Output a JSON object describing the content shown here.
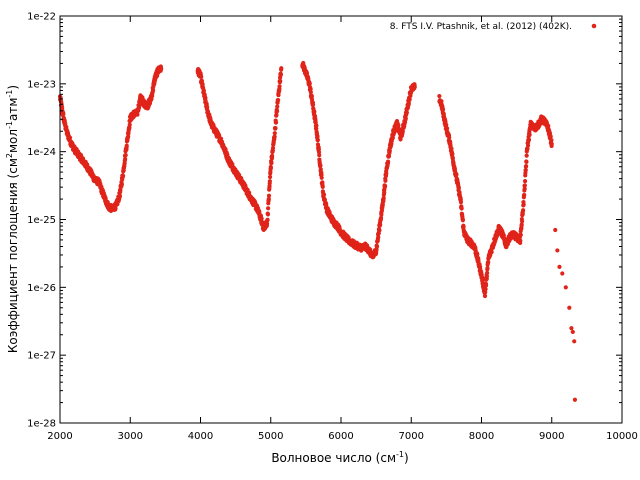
{
  "chart_data": {
    "type": "scatter",
    "title": "",
    "xlabel": {
      "main": "Волновое число (см",
      "sup": "-1",
      "tail": ")"
    },
    "ylabel": {
      "p1": "Коэффициент поглощения (см",
      "s1": "2",
      "p2": "мол",
      "s2": "-1",
      "p3": "атм",
      "s3": "-1",
      "p4": ")"
    },
    "xlim": [
      2000,
      10000
    ],
    "ylim": [
      1e-28,
      1e-22
    ],
    "y_scale": "log",
    "grid": false,
    "legend_position": "top-right",
    "x_ticks": [
      {
        "value": 2000,
        "label": "2000"
      },
      {
        "value": 3000,
        "label": "3000"
      },
      {
        "value": 4000,
        "label": "4000"
      },
      {
        "value": 5000,
        "label": "5000"
      },
      {
        "value": 6000,
        "label": "6000"
      },
      {
        "value": 7000,
        "label": "7000"
      },
      {
        "value": 8000,
        "label": "8000"
      },
      {
        "value": 9000,
        "label": "9000"
      },
      {
        "value": 10000,
        "label": "10000"
      }
    ],
    "y_ticks": [
      {
        "value": 1e-28,
        "label": "1e-28"
      },
      {
        "value": 1e-27,
        "label": "1e-27"
      },
      {
        "value": 1e-26,
        "label": "1e-26"
      },
      {
        "value": 1e-25,
        "label": "1e-25"
      },
      {
        "value": 1e-24,
        "label": "1e-24"
      },
      {
        "value": 1e-23,
        "label": "1e-23"
      },
      {
        "value": 1e-22,
        "label": "1e-22"
      }
    ],
    "series": [
      {
        "name": "8. FTS I.V. Ptashnik, et al. (2012) (402K).",
        "color": "#e0241a",
        "segments": [
          [
            [
              2000,
              6.3e-24
            ],
            [
              2030,
              4.2e-24
            ],
            [
              2060,
              2.8e-24
            ],
            [
              2100,
              1.9e-24
            ],
            [
              2150,
              1.4e-24
            ],
            [
              2200,
              1.1e-24
            ],
            [
              2300,
              8e-25
            ],
            [
              2400,
              5.7e-25
            ],
            [
              2500,
              3.8e-25
            ],
            [
              2550,
              3.6e-25
            ],
            [
              2600,
              2.6e-25
            ],
            [
              2650,
              1.9e-25
            ],
            [
              2700,
              1.5e-25
            ],
            [
              2750,
              1.45e-25
            ],
            [
              2800,
              1.6e-25
            ],
            [
              2850,
              2.3e-25
            ],
            [
              2900,
              5e-25
            ],
            [
              2950,
              1.3e-24
            ],
            [
              3000,
              3.1e-24
            ],
            [
              3050,
              3.6e-24
            ],
            [
              3100,
              3.7e-24
            ],
            [
              3150,
              6.5e-24
            ],
            [
              3200,
              5e-24
            ],
            [
              3250,
              4.8e-24
            ],
            [
              3300,
              6.2e-24
            ],
            [
              3350,
              1.2e-23
            ],
            [
              3400,
              1.6e-23
            ],
            [
              3440,
              1.65e-23
            ]
          ],
          [
            [
              3960,
              1.6e-23
            ],
            [
              4000,
              1.3e-23
            ],
            [
              4050,
              7e-24
            ],
            [
              4100,
              4e-24
            ],
            [
              4150,
              2.6e-24
            ],
            [
              4200,
              2.1e-24
            ],
            [
              4300,
              1.4e-24
            ],
            [
              4400,
              7.5e-25
            ],
            [
              4500,
              5e-25
            ],
            [
              4600,
              3.4e-25
            ],
            [
              4700,
              2.2e-25
            ],
            [
              4800,
              1.5e-25
            ],
            [
              4850,
              1.1e-25
            ],
            [
              4900,
              7.5e-26
            ],
            [
              4950,
              9e-26
            ],
            [
              5000,
              6e-25
            ],
            [
              5050,
              1.6e-24
            ],
            [
              5100,
              5.5e-24
            ],
            [
              5150,
              1.7e-23
            ]
          ],
          [
            [
              5450,
              2e-23
            ],
            [
              5500,
              1.45e-23
            ],
            [
              5550,
              1e-23
            ],
            [
              5600,
              4.8e-24
            ],
            [
              5650,
              2.2e-24
            ],
            [
              5700,
              7e-25
            ],
            [
              5750,
              2.3e-25
            ],
            [
              5800,
              1.4e-25
            ],
            [
              5850,
              1.1e-25
            ],
            [
              5900,
              9e-26
            ],
            [
              5950,
              8e-26
            ],
            [
              6000,
              6.5e-26
            ],
            [
              6100,
              5e-26
            ],
            [
              6200,
              4.2e-26
            ],
            [
              6300,
              3.8e-26
            ],
            [
              6350,
              4e-26
            ],
            [
              6400,
              3.5e-26
            ],
            [
              6450,
              2.8e-26
            ],
            [
              6500,
              3.5e-26
            ],
            [
              6550,
              8e-26
            ],
            [
              6600,
              1.9e-25
            ],
            [
              6650,
              5.7e-25
            ],
            [
              6700,
              1.2e-24
            ],
            [
              6750,
              2e-24
            ],
            [
              6800,
              2.6e-24
            ],
            [
              6850,
              1.6e-24
            ],
            [
              6900,
              2.6e-24
            ],
            [
              6950,
              4.7e-24
            ],
            [
              7000,
              8.5e-24
            ],
            [
              7050,
              9e-24
            ]
          ],
          [
            [
              7400,
              6e-24
            ],
            [
              7430,
              5e-24
            ],
            [
              7460,
              3.5e-24
            ],
            [
              7500,
              2.2e-24
            ],
            [
              7550,
              1.4e-24
            ],
            [
              7600,
              7e-25
            ],
            [
              7650,
              3.8e-25
            ],
            [
              7700,
              2e-25
            ],
            [
              7750,
              6.5e-26
            ],
            [
              7800,
              5e-26
            ],
            [
              7850,
              4.5e-26
            ],
            [
              7900,
              4e-26
            ],
            [
              7950,
              2.5e-26
            ],
            [
              8000,
              1.5e-26
            ],
            [
              8050,
              8e-27
            ],
            [
              8100,
              2.7e-26
            ],
            [
              8150,
              3.8e-26
            ],
            [
              8200,
              5.5e-26
            ],
            [
              8250,
              7.5e-26
            ],
            [
              8300,
              6e-26
            ],
            [
              8350,
              4.2e-26
            ],
            [
              8400,
              5.5e-26
            ],
            [
              8450,
              6e-26
            ],
            [
              8500,
              5.5e-26
            ],
            [
              8550,
              5e-26
            ],
            [
              8600,
              1.8e-25
            ],
            [
              8650,
              1.1e-24
            ],
            [
              8700,
              2.5e-24
            ],
            [
              8750,
              2.2e-24
            ],
            [
              8800,
              2.4e-24
            ],
            [
              8850,
              3e-24
            ],
            [
              8900,
              2.8e-24
            ],
            [
              8950,
              2.2e-24
            ],
            [
              9000,
              1.3e-24
            ]
          ],
          [
            [
              9050,
              7e-26
            ],
            [
              9080,
              3.5e-26
            ],
            [
              9110,
              2e-26
            ],
            [
              9150,
              1.6e-26
            ],
            [
              9200,
              1e-26
            ],
            [
              9250,
              5e-27
            ],
            [
              9280,
              2.5e-27
            ],
            [
              9300,
              2.2e-27
            ],
            [
              9320,
              1.6e-27
            ],
            [
              9330,
              2.2e-28
            ]
          ]
        ]
      }
    ]
  }
}
